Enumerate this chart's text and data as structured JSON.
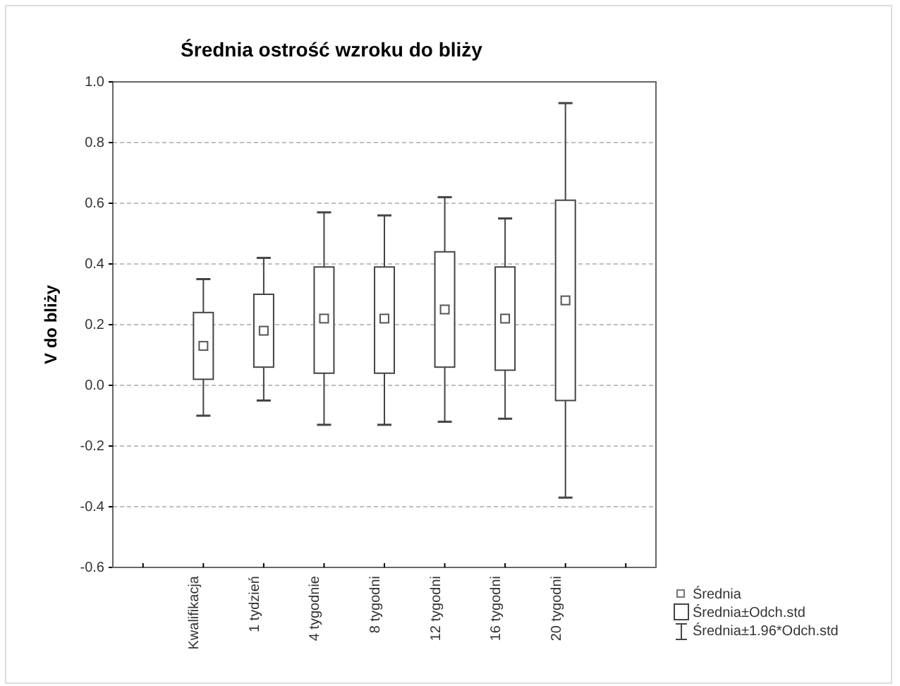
{
  "chart_data": {
    "type": "box",
    "title": "Średnia ostrość wzroku do bliży",
    "ylabel": "V do bliży",
    "categories": [
      null,
      "Kwalifikacja",
      "1 tydzień",
      "4 tygodnie",
      "8 tygodni",
      "12 tygodni",
      "16 tygodni",
      "20 tygodni",
      null
    ],
    "boxes": [
      null,
      {
        "low": -0.1,
        "q1": 0.02,
        "median": 0.13,
        "q3": 0.24,
        "high": 0.35
      },
      {
        "low": -0.05,
        "q1": 0.06,
        "median": 0.18,
        "q3": 0.3,
        "high": 0.42
      },
      {
        "low": -0.13,
        "q1": 0.04,
        "median": 0.22,
        "q3": 0.39,
        "high": 0.57
      },
      {
        "low": -0.13,
        "q1": 0.04,
        "median": 0.22,
        "q3": 0.39,
        "high": 0.56
      },
      {
        "low": -0.12,
        "q1": 0.06,
        "median": 0.25,
        "q3": 0.44,
        "high": 0.62
      },
      {
        "low": -0.11,
        "q1": 0.05,
        "median": 0.22,
        "q3": 0.39,
        "high": 0.55
      },
      {
        "low": -0.37,
        "q1": -0.05,
        "median": 0.28,
        "q3": 0.61,
        "high": 0.93
      },
      null
    ],
    "ylim": [
      -0.6,
      1.0
    ],
    "yticks": [
      {
        "value": -0.6,
        "label": "-0.6"
      },
      {
        "value": -0.4,
        "label": "-0.4"
      },
      {
        "value": -0.2,
        "label": "-0.2"
      },
      {
        "value": 0,
        "label": "0.0"
      },
      {
        "value": 0.2,
        "label": "0.2"
      },
      {
        "value": 0.4,
        "label": "0.4"
      },
      {
        "value": 0.6,
        "label": "0.6"
      },
      {
        "value": 0.8,
        "label": "0.8"
      },
      {
        "value": 1,
        "label": "1.0"
      }
    ],
    "grid": "y",
    "annotations": [
      "Średnia",
      "Średnia±Odch.std",
      "Średnia±1.96*Odch.std"
    ]
  }
}
